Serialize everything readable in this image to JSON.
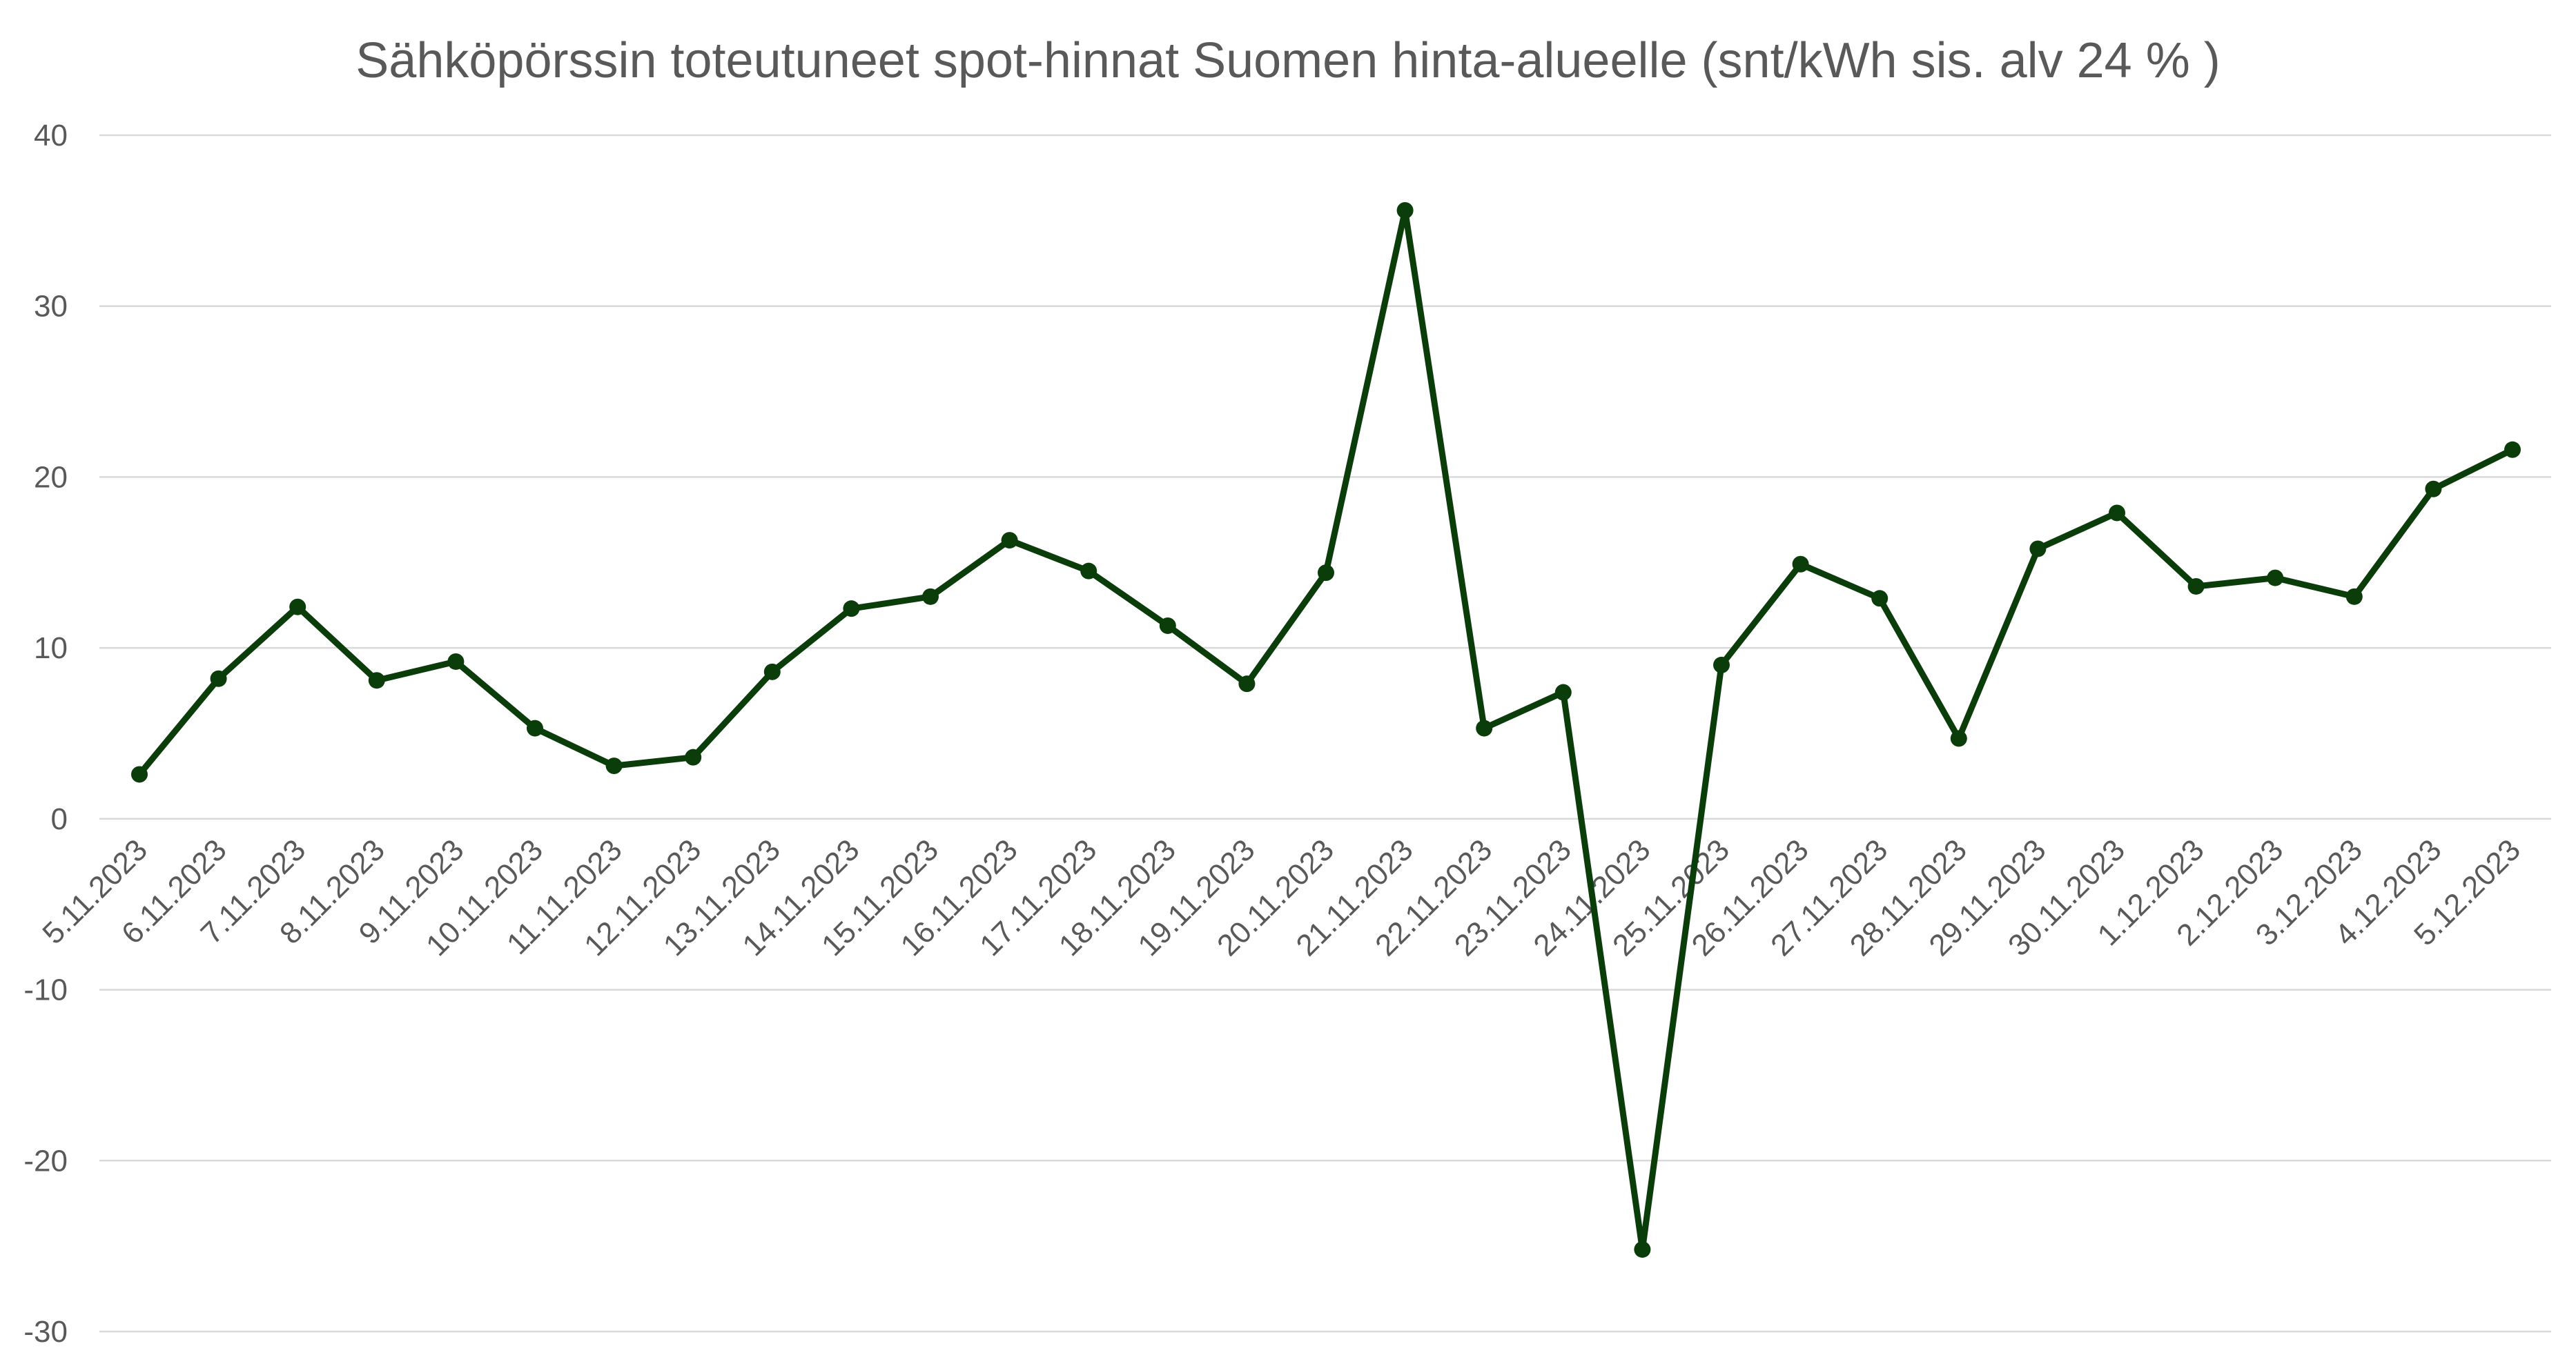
{
  "chart_data": {
    "type": "line",
    "title": "Sähköpörssin toteutuneet spot-hinnat Suomen hinta-alueelle (snt/kWh sis. alv 24 % )",
    "xlabel": "",
    "ylabel": "",
    "categories": [
      "5.11.2023",
      "6.11.2023",
      "7.11.2023",
      "8.11.2023",
      "9.11.2023",
      "10.11.2023",
      "11.11.2023",
      "12.11.2023",
      "13.11.2023",
      "14.11.2023",
      "15.11.2023",
      "16.11.2023",
      "17.11.2023",
      "18.11.2023",
      "19.11.2023",
      "20.11.2023",
      "21.11.2023",
      "22.11.2023",
      "23.11.2023",
      "24.11.2023",
      "25.11.2023",
      "26.11.2023",
      "27.11.2023",
      "28.11.2023",
      "29.11.2023",
      "30.11.2023",
      "1.12.2023",
      "2.12.2023",
      "3.12.2023",
      "4.12.2023",
      "5.12.2023"
    ],
    "series": [
      {
        "values": [
          2.6,
          8.2,
          12.4,
          8.1,
          9.2,
          5.3,
          3.1,
          3.6,
          8.6,
          12.3,
          13.0,
          16.3,
          14.5,
          11.3,
          7.9,
          14.4,
          35.6,
          5.3,
          7.4,
          -25.2,
          9.0,
          14.9,
          12.9,
          4.7,
          15.8,
          17.9,
          13.6,
          14.1,
          13.0,
          19.3,
          21.6
        ],
        "color": "#0b3d0b"
      }
    ],
    "ylim": [
      -30,
      40
    ],
    "yticks": [
      "40",
      "30",
      "20",
      "10",
      "0",
      "-10",
      "-20",
      "-30"
    ],
    "grid": true,
    "legend": "none",
    "colors": {
      "line": "#0b3d0b",
      "grid": "#d9d9d9",
      "text": "#595959"
    }
  }
}
